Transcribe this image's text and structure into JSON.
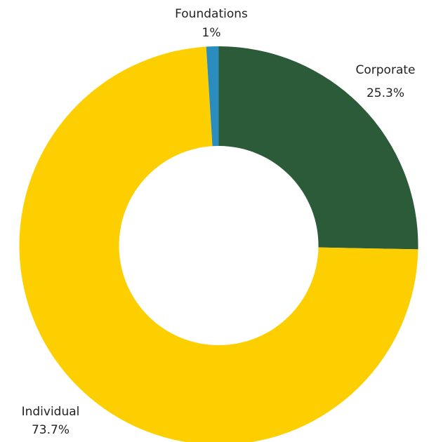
{
  "chart_data": {
    "type": "pie",
    "variant": "donut",
    "title": "",
    "legend": "none",
    "categories": [
      "Corporate",
      "Individual",
      "Foundations"
    ],
    "values": [
      25.3,
      73.7,
      1.0
    ],
    "value_labels": [
      "25.3%",
      "73.7%",
      "1%"
    ],
    "colors": [
      "#2c5b3a",
      "#fdcf00",
      "#2a8dbe"
    ],
    "start_angle_deg": 0,
    "direction": "clockwise"
  }
}
